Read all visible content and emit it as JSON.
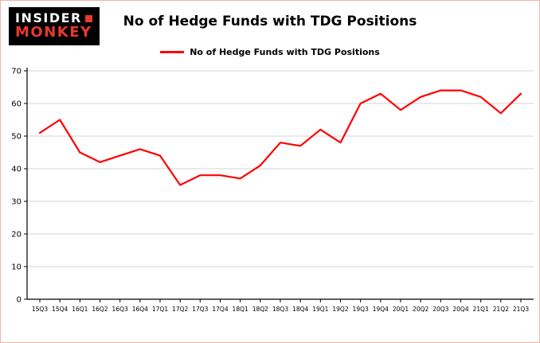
{
  "logo": {
    "line1": "INSIDER",
    "line2": "MONKEY"
  },
  "title": "No of Hedge Funds with TDG Positions",
  "legend": {
    "label": "No of Hedge Funds with TDG Positions",
    "color": "#ff0000"
  },
  "colors": {
    "accent": "#ff0000",
    "grid": "#d3d3d3",
    "axis": "#000000",
    "background": "#ffffff",
    "logo_red": "#e8392d"
  },
  "chart_data": {
    "type": "line",
    "title": "No of Hedge Funds with TDG Positions",
    "xlabel": "",
    "ylabel": "",
    "categories": [
      "15Q3",
      "15Q4",
      "16Q1",
      "16Q2",
      "16Q3",
      "16Q4",
      "17Q1",
      "17Q2",
      "17Q3",
      "17Q4",
      "18Q1",
      "18Q2",
      "18Q3",
      "18Q4",
      "19Q1",
      "19Q2",
      "19Q3",
      "19Q4",
      "20Q1",
      "20Q2",
      "20Q3",
      "20Q4",
      "21Q1",
      "21Q2",
      "21Q3"
    ],
    "series": [
      {
        "name": "No of Hedge Funds with TDG Positions",
        "values": [
          51,
          55,
          45,
          42,
          44,
          46,
          44,
          35,
          38,
          38,
          37,
          41,
          48,
          47,
          52,
          48,
          60,
          63,
          58,
          62,
          64,
          64,
          62,
          57,
          63
        ]
      }
    ],
    "ylim": [
      0,
      70
    ],
    "yticks": [
      0,
      10,
      20,
      30,
      40,
      50,
      60,
      70
    ],
    "grid": true,
    "line_color": "#ff0000",
    "legend_position": "top-center"
  }
}
